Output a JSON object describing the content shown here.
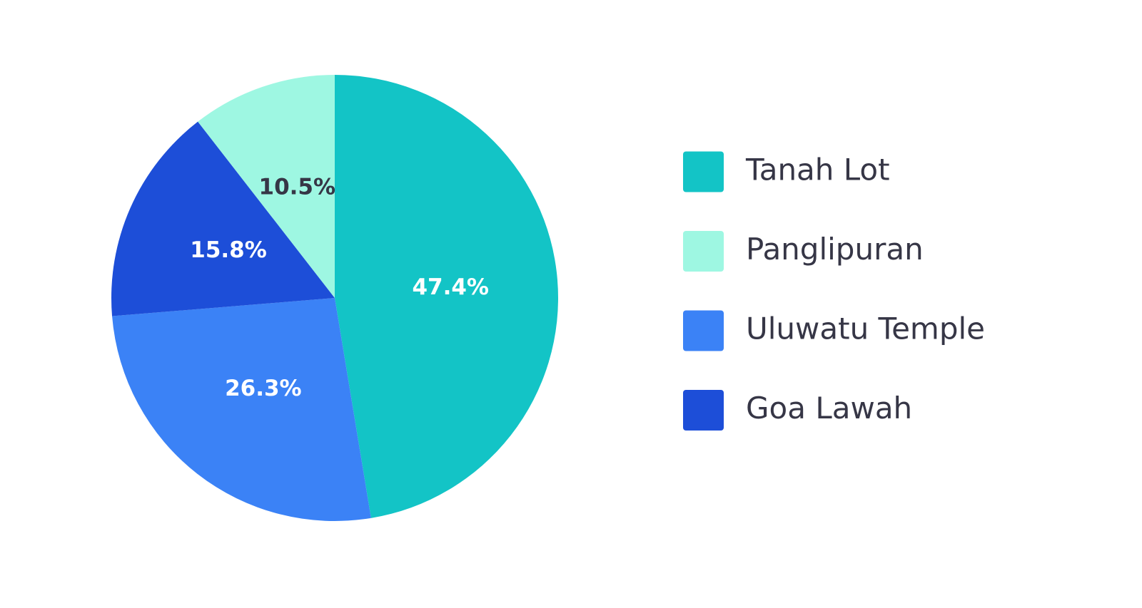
{
  "chart_data": {
    "type": "pie",
    "categories": [
      "Tanah Lot",
      "Uluwatu Temple",
      "Goa Lawah",
      "Panglipuran"
    ],
    "values": [
      47.4,
      26.3,
      15.8,
      10.5
    ],
    "value_labels": [
      "47.4%",
      "26.3%",
      "15.8%",
      "10.5%"
    ],
    "colors": [
      "#13c4c6",
      "#3b82f6",
      "#1d4ed8",
      "#9ef7e2"
    ]
  }
}
